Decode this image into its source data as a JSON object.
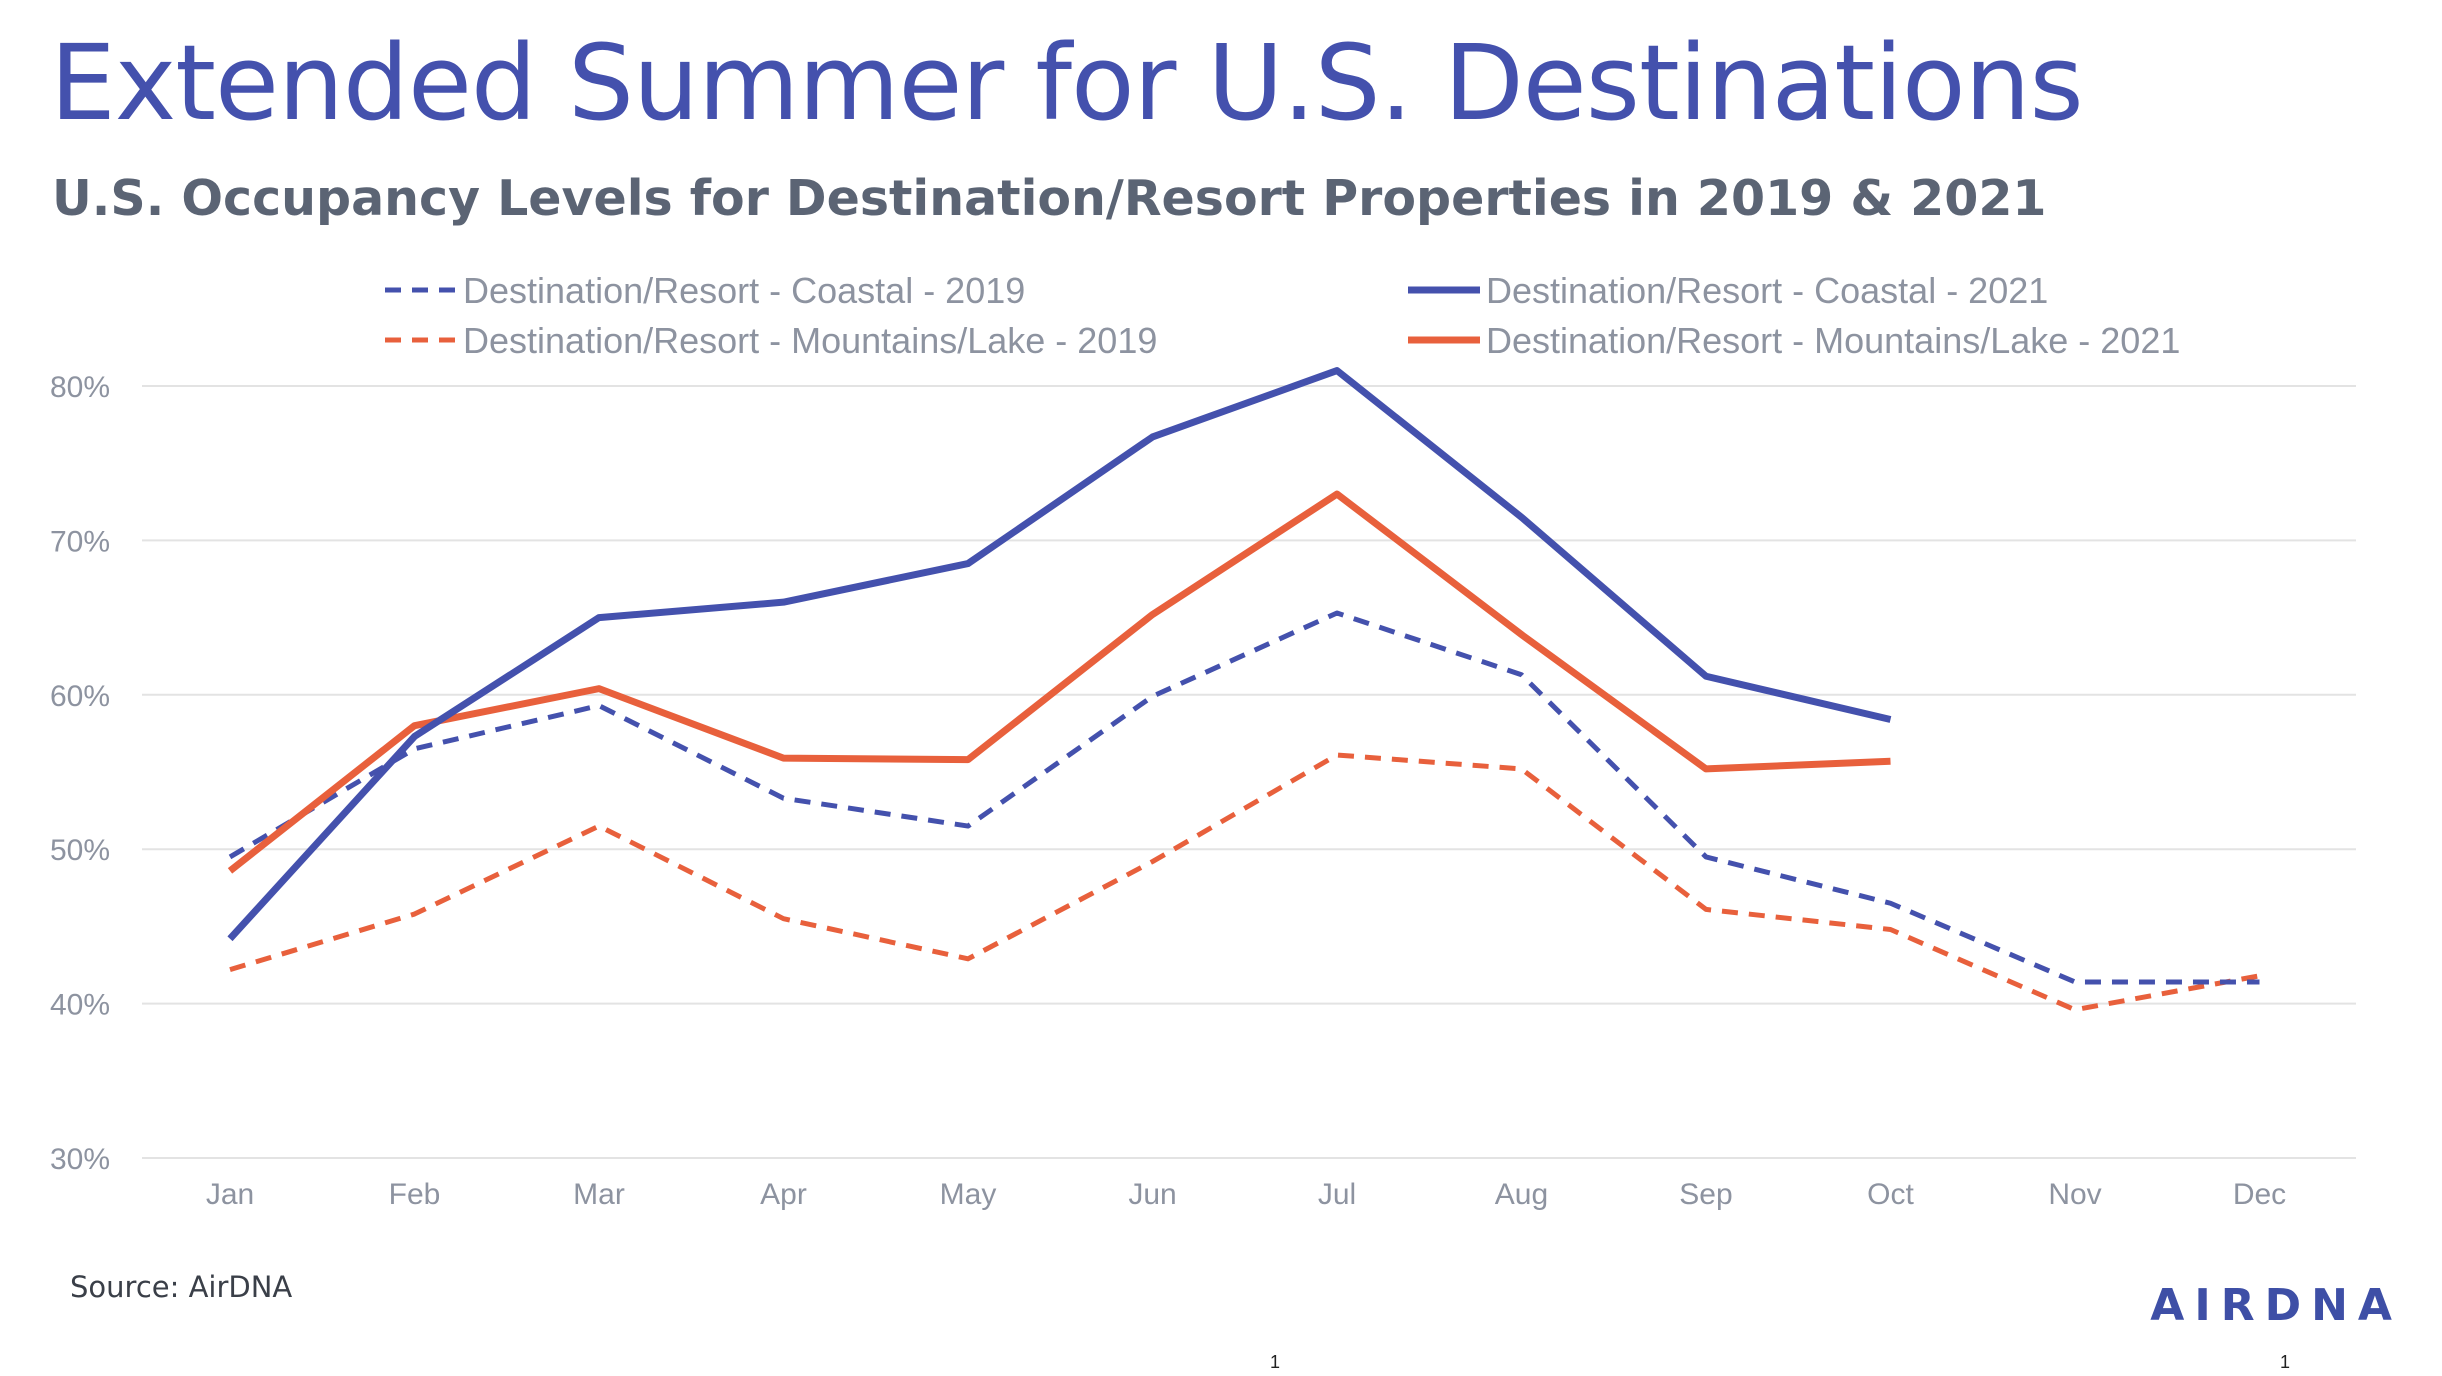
{
  "page": {
    "title": "Extended Summer for U.S. Destinations",
    "subtitle": "U.S. Occupancy Levels for Destination/Resort Properties in 2019 & 2021",
    "source": "Source: AirDNA",
    "logo": "AIRDNA",
    "page_number_center": "1",
    "page_number_right": "1"
  },
  "colors": {
    "blue": "#4451ad",
    "orange": "#e8603c",
    "grid": "#e3e3e3",
    "axis_text": "#8d93a0"
  },
  "chart_data": {
    "type": "line",
    "title": "U.S. Occupancy Levels for Destination/Resort Properties in 2019 & 2021",
    "xlabel": "",
    "ylabel": "",
    "categories": [
      "Jan",
      "Feb",
      "Mar",
      "Apr",
      "May",
      "Jun",
      "Jul",
      "Aug",
      "Sep",
      "Oct",
      "Nov",
      "Dec"
    ],
    "ylim": [
      30,
      80
    ],
    "yticks": [
      30,
      40,
      50,
      60,
      70,
      80
    ],
    "ytick_labels": [
      "30%",
      "40%",
      "50%",
      "60%",
      "70%",
      "80%"
    ],
    "grid": true,
    "legend_position": "top",
    "series": [
      {
        "name": "Destination/Resort - Coastal - 2019",
        "color": "#4451ad",
        "style": "dashed",
        "values": [
          49.5,
          56.5,
          59.3,
          53.3,
          51.5,
          59.9,
          65.3,
          61.3,
          49.5,
          46.5,
          41.4,
          41.4
        ]
      },
      {
        "name": "Destination/Resort - Coastal - 2021",
        "color": "#4451ad",
        "style": "solid",
        "values": [
          44.2,
          57.3,
          65.0,
          66.0,
          68.5,
          76.7,
          81.0,
          71.5,
          61.2,
          58.4,
          null,
          null
        ]
      },
      {
        "name": "Destination/Resort - Mountains/Lake - 2019",
        "color": "#e8603c",
        "style": "dashed",
        "values": [
          42.2,
          45.8,
          51.5,
          45.5,
          42.9,
          49.2,
          56.1,
          55.2,
          46.1,
          44.8,
          39.6,
          41.8
        ]
      },
      {
        "name": "Destination/Resort - Mountains/Lake - 2021",
        "color": "#e8603c",
        "style": "solid",
        "values": [
          48.6,
          58.0,
          60.4,
          55.9,
          55.8,
          65.2,
          73.0,
          63.9,
          55.2,
          55.7,
          null,
          null
        ]
      }
    ]
  }
}
